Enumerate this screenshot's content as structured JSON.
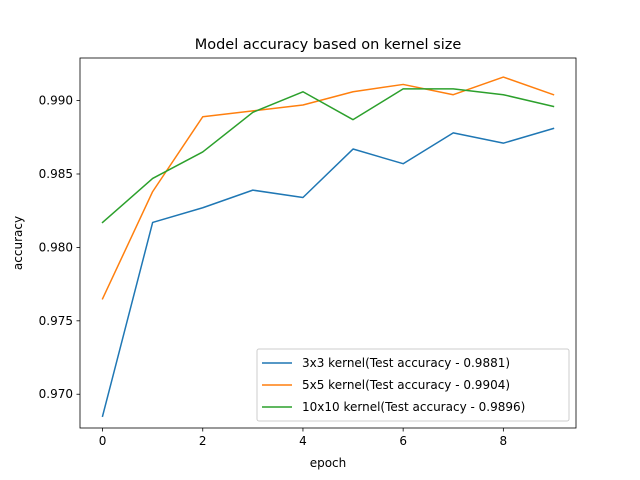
{
  "chart_data": {
    "type": "line",
    "title": "Model accuracy based on kernel size",
    "xlabel": "epoch",
    "ylabel": "accuracy",
    "xlim": [
      -0.45,
      9.45
    ],
    "ylim": [
      0.9677,
      0.9929
    ],
    "x": [
      0,
      1,
      2,
      3,
      4,
      5,
      6,
      7,
      8,
      9
    ],
    "xticks": [
      0,
      2,
      4,
      6,
      8
    ],
    "yticks": [
      0.97,
      0.975,
      0.98,
      0.985,
      0.99
    ],
    "xtick_labels": [
      "0",
      "2",
      "4",
      "6",
      "8"
    ],
    "ytick_labels": [
      "0.970",
      "0.975",
      "0.980",
      "0.985",
      "0.990"
    ],
    "legend_position": "lower-right",
    "grid": false,
    "series": [
      {
        "name": "3x3 kernel(Test accuracy - 0.9881)",
        "color": "#1f77b4",
        "values": [
          0.9685,
          0.9817,
          0.9827,
          0.9839,
          0.9834,
          0.9867,
          0.9857,
          0.9878,
          0.9871,
          0.9881
        ]
      },
      {
        "name": "5x5 kernel(Test accuracy - 0.9904)",
        "color": "#ff7f0e",
        "values": [
          0.9765,
          0.9838,
          0.9889,
          0.9893,
          0.9897,
          0.9906,
          0.9911,
          0.9904,
          0.9916,
          0.9904
        ]
      },
      {
        "name": "10x10 kernel(Test accuracy - 0.9896)",
        "color": "#2ca02c",
        "values": [
          0.9817,
          0.9847,
          0.9865,
          0.9892,
          0.9906,
          0.9887,
          0.9908,
          0.9908,
          0.9904,
          0.9896
        ]
      }
    ]
  }
}
